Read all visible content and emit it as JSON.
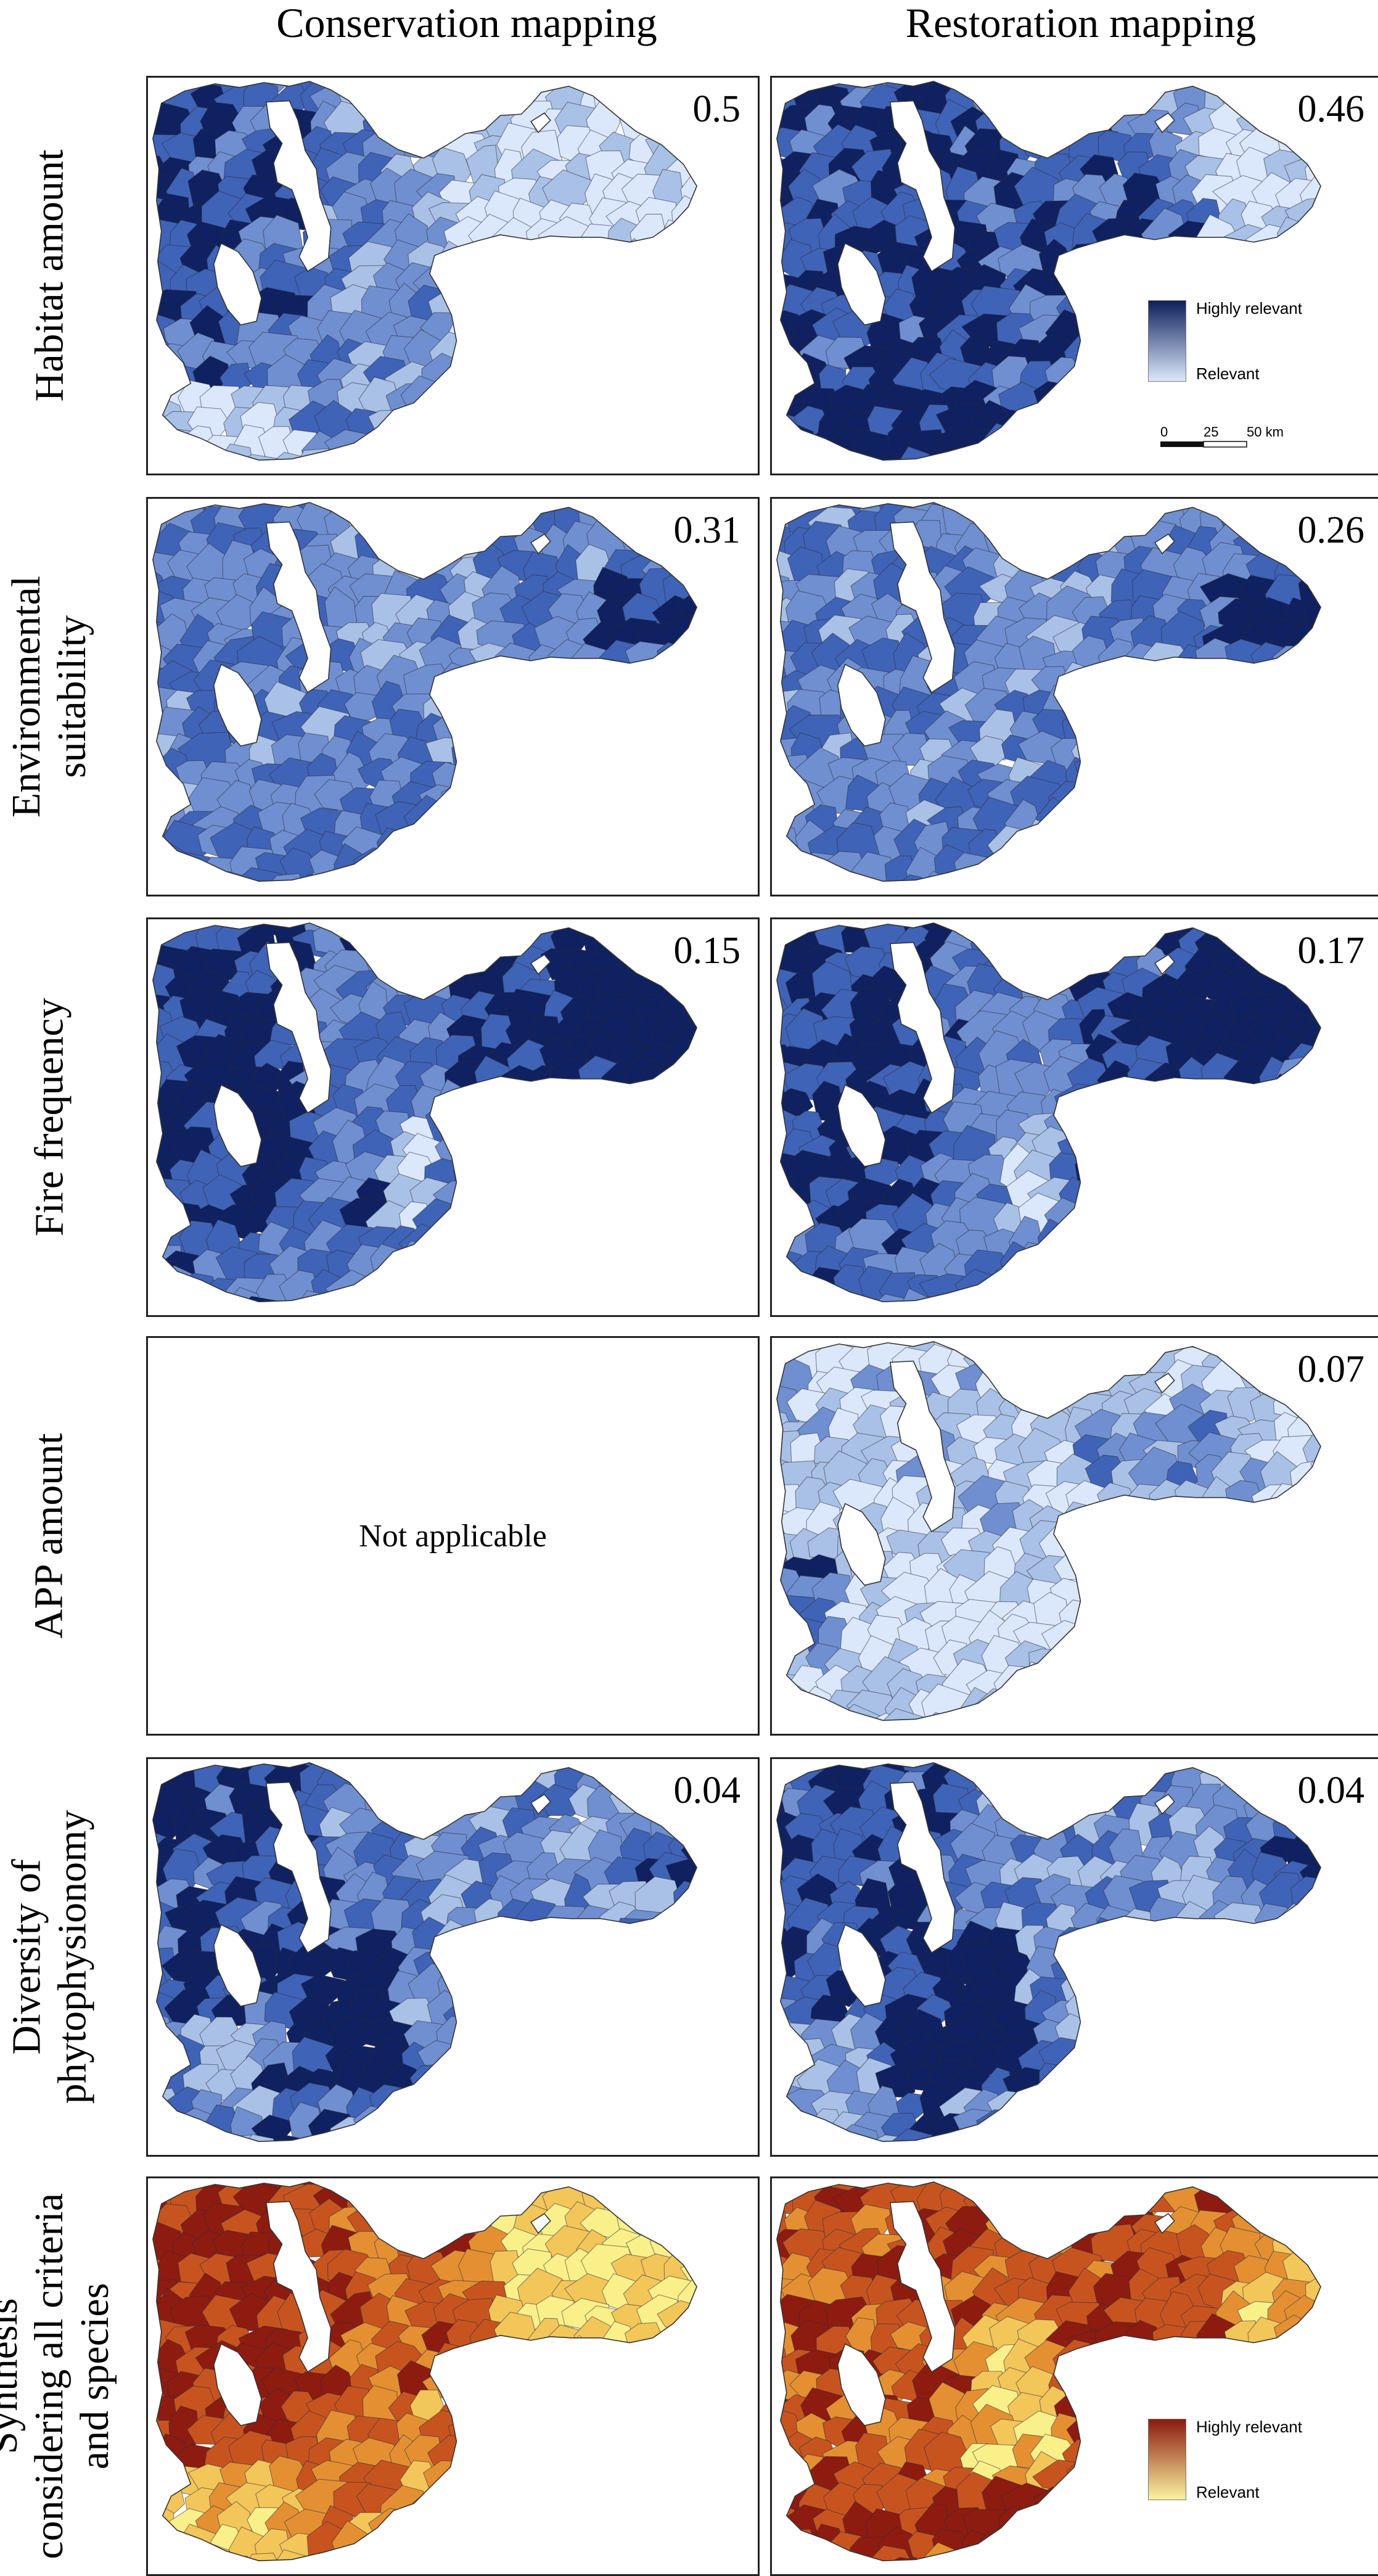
{
  "columns": [
    "Conservation mapping",
    "Restoration mapping"
  ],
  "rows": [
    {
      "label_lines": [
        "Habitat amount"
      ],
      "conservation": {
        "weight": "0.5",
        "style": "habitat_c"
      },
      "restoration": {
        "weight": "0.46",
        "style": "habitat_r"
      }
    },
    {
      "label_lines": [
        "Environmental",
        "suitability"
      ],
      "conservation": {
        "weight": "0.31",
        "style": "env"
      },
      "restoration": {
        "weight": "0.26",
        "style": "env"
      }
    },
    {
      "label_lines": [
        "Fire frequency"
      ],
      "conservation": {
        "weight": "0.15",
        "style": "fire"
      },
      "restoration": {
        "weight": "0.17",
        "style": "fire"
      }
    },
    {
      "label_lines": [
        "APP amount"
      ],
      "conservation": {
        "weight": "",
        "style": "none",
        "text": "Not applicable"
      },
      "restoration": {
        "weight": "0.07",
        "style": "app"
      }
    },
    {
      "label_lines": [
        "Diversity of",
        "phytophysionomy"
      ],
      "conservation": {
        "weight": "0.04",
        "style": "div"
      },
      "restoration": {
        "weight": "0.04",
        "style": "div"
      }
    },
    {
      "label_lines": [
        "Synthesis",
        "considering all criteria",
        "and species"
      ],
      "conservation": {
        "weight": "",
        "style": "syn_c"
      },
      "restoration": {
        "weight": "",
        "style": "syn_r"
      }
    }
  ],
  "legend_blue": {
    "high": "Highly relevant",
    "low": "Relevant",
    "color_high": "#0d1f5c",
    "color_low": "#dbe8fb"
  },
  "legend_warm": {
    "high": "Highly relevant",
    "low": "Relevant",
    "color_high": "#8b1a0e",
    "color_low": "#fbf3a0"
  },
  "scale_bar": {
    "ticks": [
      "0",
      "25",
      "50 km"
    ]
  },
  "colors": {
    "blue": [
      "#dbe8fb",
      "#a9c1e6",
      "#6f8fd0",
      "#3f63b6",
      "#0f2160"
    ],
    "warm": [
      "#faf08a",
      "#f3c65a",
      "#e49032",
      "#c7541f",
      "#8e1b10"
    ]
  }
}
